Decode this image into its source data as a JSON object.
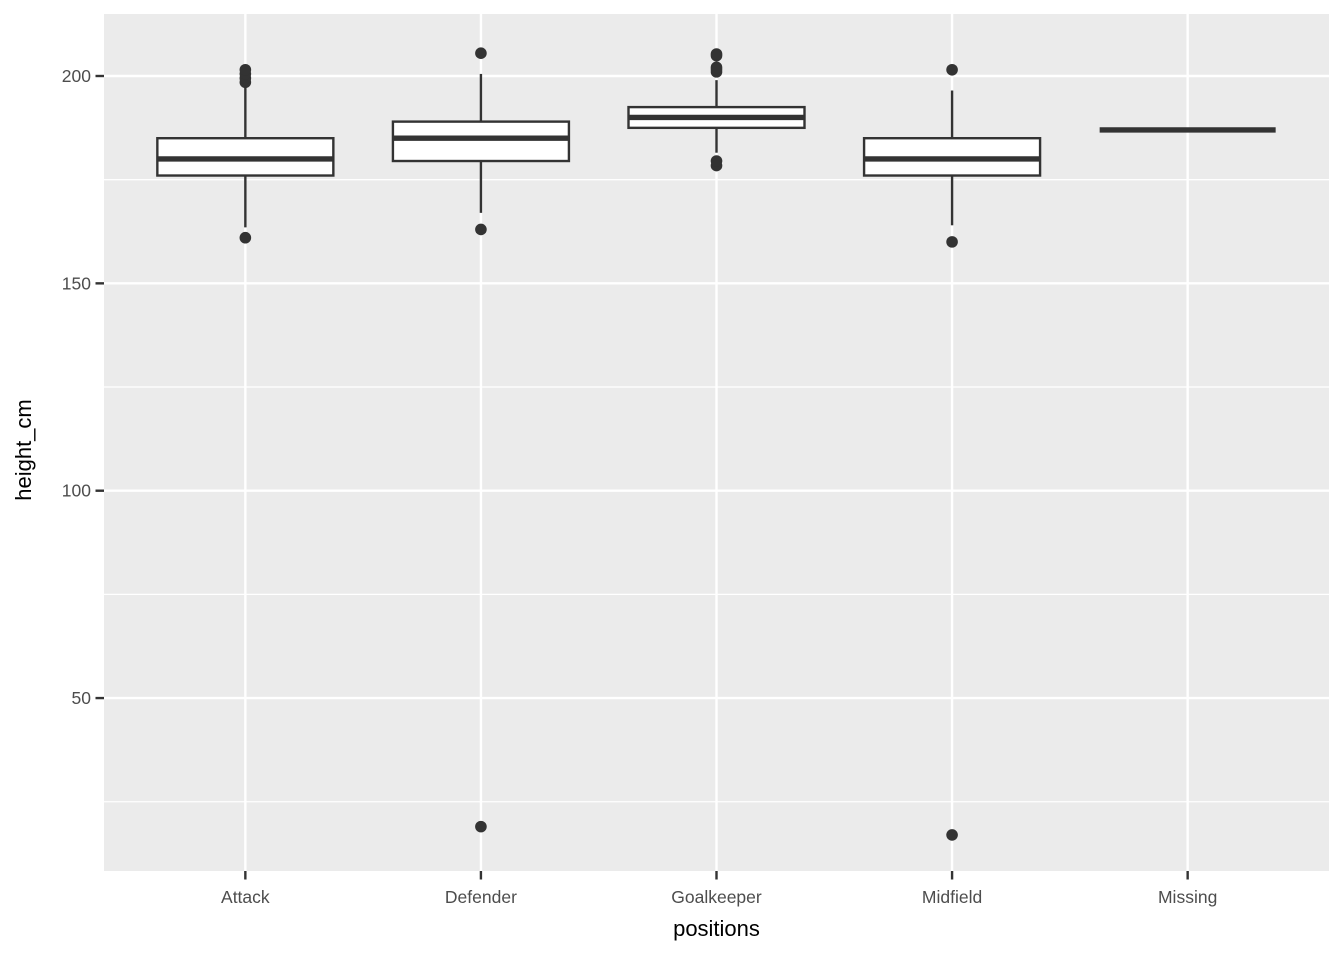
{
  "chart_data": {
    "type": "boxplot",
    "title": "",
    "xlabel": "positions",
    "ylabel": "height_cm",
    "categories": [
      "Attack",
      "Defender",
      "Goalkeeper",
      "Midfield",
      "Missing"
    ],
    "y_ticks": [
      50,
      100,
      150,
      200
    ],
    "y_minor_ticks": [
      25,
      75,
      125,
      175
    ],
    "ylim": [
      8.3,
      214.95
    ],
    "grid": "major-and-minor-horizontal, major-vertical-at-categories",
    "legend_position": "none",
    "series": [
      {
        "category": "Attack",
        "whisker_low": 163.5,
        "q1": 176,
        "median": 180,
        "q3": 185,
        "whisker_high": 197.5,
        "outliers_low": [
          161
        ],
        "outliers_high": [
          198.5,
          199.5,
          200.5,
          201.5
        ]
      },
      {
        "category": "Defender",
        "whisker_low": 167,
        "q1": 179.5,
        "median": 185,
        "q3": 189,
        "whisker_high": 200.5,
        "outliers_low": [
          163,
          19
        ],
        "outliers_high": [
          205.5
        ]
      },
      {
        "category": "Goalkeeper",
        "whisker_low": 181.5,
        "q1": 187.5,
        "median": 190,
        "q3": 192.5,
        "whisker_high": 199,
        "outliers_low": [
          178.4,
          179.5
        ],
        "outliers_high": [
          201,
          201.6,
          202.1,
          204.9,
          205.3
        ]
      },
      {
        "category": "Midfield",
        "whisker_low": 164,
        "q1": 176,
        "median": 180,
        "q3": 185,
        "whisker_high": 196.5,
        "outliers_low": [
          160,
          17
        ],
        "outliers_high": [
          201.5
        ]
      },
      {
        "category": "Missing",
        "whisker_low": 187,
        "q1": 187,
        "median": 187,
        "q3": 187,
        "whisker_high": 187,
        "outliers_low": [],
        "outliers_high": []
      }
    ]
  },
  "style": {
    "panel_bg": "#EBEBEB",
    "grid_color": "#FFFFFF",
    "box_stroke": "#333333",
    "box_fill": "#FFFFFF",
    "outlier_color": "#333333",
    "tick_color": "#333333",
    "axis_text_color": "#4D4D4D",
    "axis_title_color": "#000000",
    "background": "#FFFFFF"
  }
}
